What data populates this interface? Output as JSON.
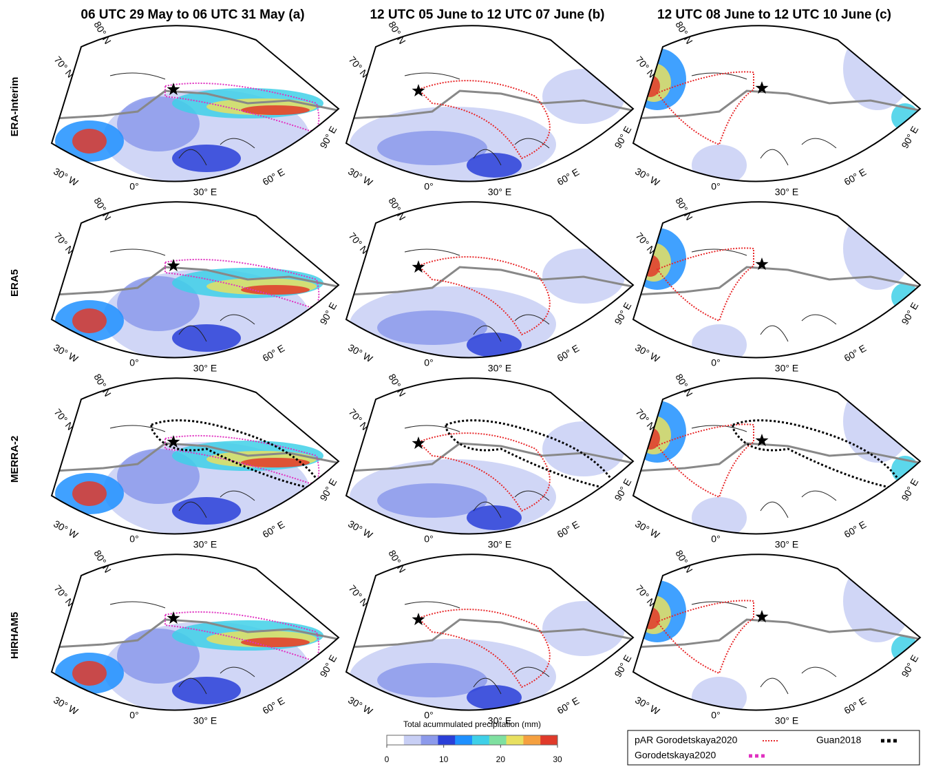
{
  "column_titles": [
    "06 UTC 29 May to 06 UTC 31 May (a)",
    "12 UTC 05 June to 12 UTC 07 June (b)",
    "12 UTC 08 June to 12 UTC 10 June (c)"
  ],
  "row_labels": [
    "ERA-Interim",
    "ERA5",
    "MERRA-2",
    "HIRHAM5"
  ],
  "graticule_labels": [
    "80° N",
    "70° N",
    "30° W",
    "0°",
    "30° E",
    "60° E",
    "90° E"
  ],
  "colorbar": {
    "title": "Total acummulated precipitation (mm)",
    "range": [
      0,
      30
    ],
    "ticks": [
      0,
      10,
      20,
      30
    ],
    "colors": [
      "#ffffff",
      "#c8cff5",
      "#8c9aeb",
      "#2a3fd8",
      "#1e90ff",
      "#3fd0e8",
      "#7fe0a0",
      "#e8e060",
      "#f5a040",
      "#e03a2a"
    ]
  },
  "legend": [
    {
      "name": "pAR Gorodetskaya2020",
      "color": "#e8282a"
    },
    {
      "name": "Guan2018",
      "color": "#000000"
    },
    {
      "name": "Gorodetskaya2020",
      "color": "#e030c0"
    }
  ]
}
